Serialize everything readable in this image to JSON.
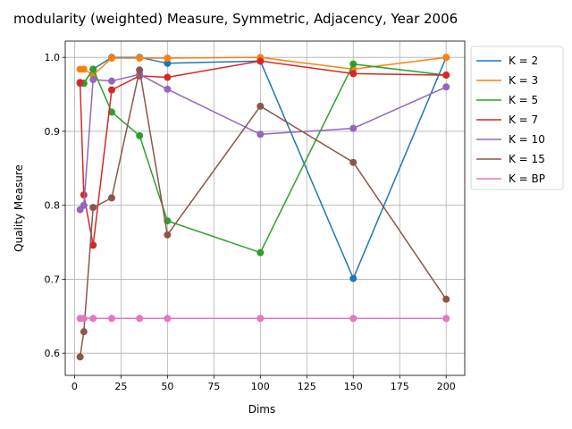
{
  "chart_data": {
    "type": "line",
    "title": "modularity (weighted) Measure, Symmetric, Adjacency, Year 2006",
    "xlabel": "Dims",
    "ylabel": "Quality Measure",
    "xlim": [
      -5,
      210
    ],
    "ylim": [
      0.57,
      1.022
    ],
    "xticks": [
      0,
      25,
      50,
      75,
      100,
      125,
      150,
      175,
      200
    ],
    "yticks": [
      0.6,
      0.7,
      0.8,
      0.9,
      1.0
    ],
    "ytick_labels": [
      "0.6",
      "0.7",
      "0.8",
      "0.9",
      "1.0"
    ],
    "grid": true,
    "legend_position": "outside-right-top",
    "x": [
      3,
      5,
      10,
      20,
      35,
      50,
      100,
      150,
      200
    ],
    "series": [
      {
        "name": "K = 2",
        "color": "#1f77b4",
        "values": [
          0.965,
          0.965,
          0.984,
          1.0,
          1.0,
          0.992,
          0.995,
          0.701,
          1.0
        ]
      },
      {
        "name": "K = 3",
        "color": "#ff7f0e",
        "values": [
          0.984,
          0.984,
          0.976,
          0.999,
          0.999,
          0.999,
          1.0,
          0.984,
          1.0
        ]
      },
      {
        "name": "K = 5",
        "color": "#2ca02c",
        "values": [
          0.965,
          0.965,
          0.984,
          0.926,
          0.894,
          0.779,
          0.736,
          0.991,
          0.976
        ]
      },
      {
        "name": "K = 7",
        "color": "#d62728",
        "values": [
          0.966,
          0.814,
          0.746,
          0.956,
          0.975,
          0.973,
          0.995,
          0.978,
          0.976
        ]
      },
      {
        "name": "K = 10",
        "color": "#9467bd",
        "values": [
          0.794,
          0.8,
          0.97,
          0.968,
          0.977,
          0.957,
          0.896,
          0.904,
          0.96
        ]
      },
      {
        "name": "K = 15",
        "color": "#8c564b",
        "values": [
          0.595,
          0.629,
          0.797,
          0.81,
          0.983,
          0.76,
          0.934,
          0.858,
          0.673
        ]
      },
      {
        "name": "K = BP",
        "color": "#e377c2",
        "values": [
          0.647,
          0.647,
          0.647,
          0.647,
          0.647,
          0.647,
          0.647,
          0.647,
          0.647
        ]
      }
    ]
  }
}
